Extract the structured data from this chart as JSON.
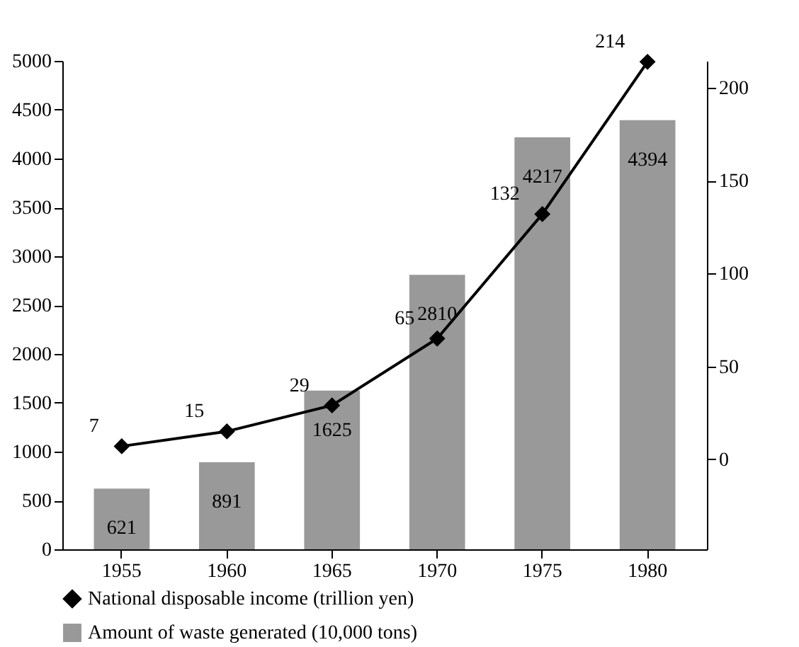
{
  "chart_data": {
    "type": "bar",
    "categories": [
      "1955",
      "1960",
      "1965",
      "1970",
      "1975",
      "1980"
    ],
    "series": [
      {
        "name": "National disposable income (trillion yen)",
        "type": "line",
        "axis": "y2",
        "color": "#000000",
        "values": [
          7,
          15,
          29,
          65,
          132,
          214
        ]
      },
      {
        "name": "Amount of waste generated (10,000 tons)",
        "color": "#999999",
        "values": [
          621,
          891,
          1625,
          2810,
          4217,
          4394
        ]
      }
    ],
    "ylim": [
      0,
      5000
    ],
    "yticks": [
      0,
      500,
      1000,
      1500,
      2000,
      2500,
      3000,
      3500,
      4000,
      4500,
      5000
    ],
    "y2lim": [
      -48.5,
      214.5
    ],
    "y2ticks": [
      0,
      50,
      100,
      150,
      200
    ],
    "data_labels": true,
    "legend": "bottom",
    "marker": "diamond",
    "grid": false
  }
}
